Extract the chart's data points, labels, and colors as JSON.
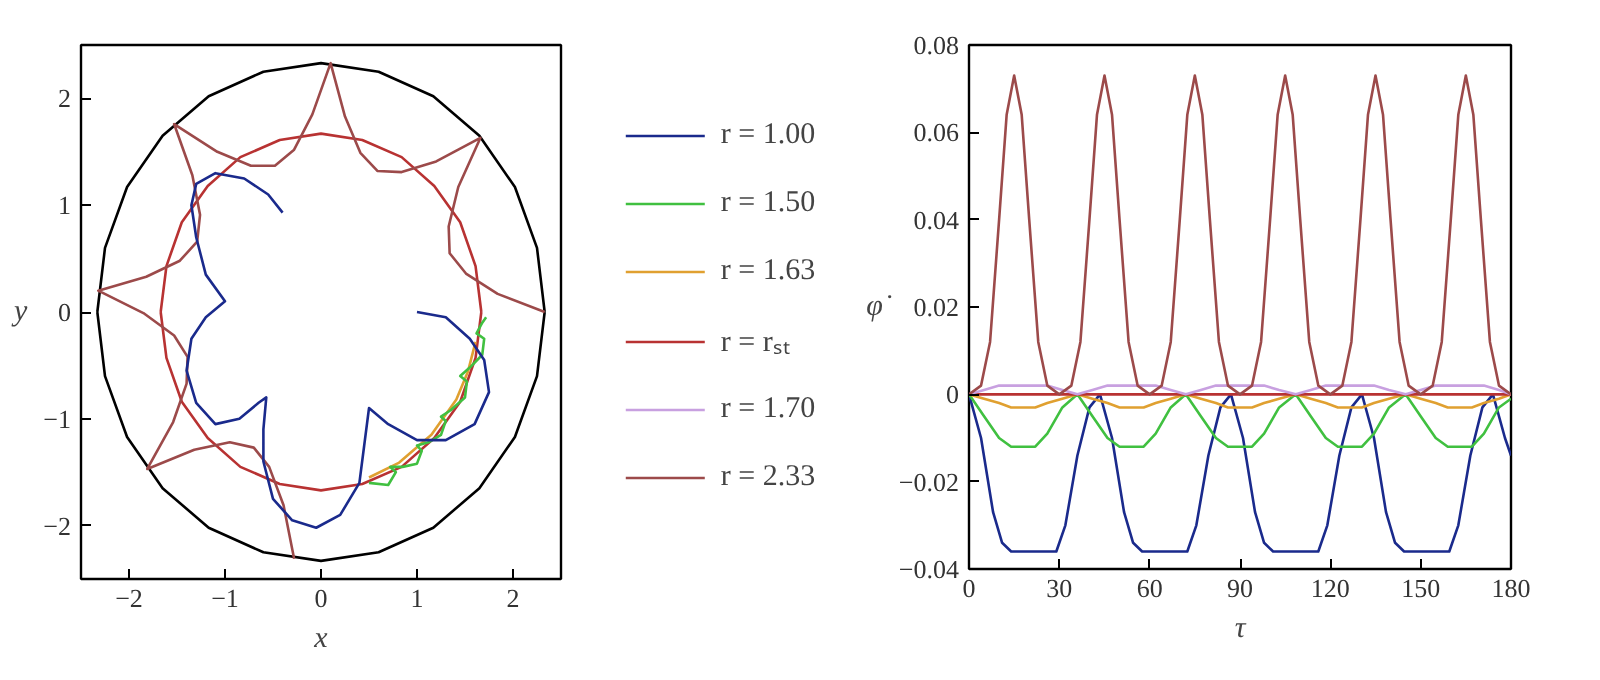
{
  "chart_data": [
    {
      "type": "line",
      "xlabel": "x",
      "ylabel": "y",
      "xlim": [
        -2.5,
        2.5
      ],
      "ylim": [
        -2.5,
        2.5
      ],
      "xticks": [
        {
          "value": -2,
          "label": "−2"
        },
        {
          "value": -1,
          "label": "−1"
        },
        0,
        1,
        2
      ],
      "yticks": [
        {
          "value": -2,
          "label": "−2"
        },
        {
          "value": -1,
          "label": "−1"
        },
        0,
        1,
        2
      ],
      "grid": false,
      "legend": false,
      "line_style": "solid",
      "marker": "none",
      "series": [
        {
          "color": "#000000",
          "x": [
            -2.33,
            -2.25,
            -2.02,
            -1.65,
            -1.17,
            -0.6,
            0,
            0.6,
            1.17,
            1.65,
            2.02,
            2.25,
            2.33,
            null,
            -2.33,
            -2.25,
            -2.02,
            -1.65,
            -1.17,
            -0.6,
            0,
            0.6,
            1.17,
            1.65,
            2.02,
            2.25,
            2.33
          ],
          "values": [
            0,
            0.6,
            1.17,
            1.65,
            2.02,
            2.25,
            2.33,
            2.25,
            2.02,
            1.65,
            1.17,
            0.6,
            0,
            null,
            0,
            -0.6,
            -1.17,
            -1.65,
            -2.02,
            -2.25,
            -2.33,
            -2.25,
            -2.02,
            -1.65,
            -1.17,
            -0.6,
            0
          ]
        },
        {
          "color": "#b83232",
          "x": [
            -1.67,
            -1.61,
            -1.45,
            -1.18,
            -0.84,
            -0.43,
            0,
            0.43,
            0.84,
            1.18,
            1.45,
            1.61,
            1.67,
            null,
            -1.67,
            -1.61,
            -1.45,
            -1.18,
            -0.84,
            -0.43,
            0,
            0.43,
            0.84,
            1.18,
            1.45,
            1.61,
            1.67
          ],
          "values": [
            0,
            0.43,
            0.84,
            1.18,
            1.45,
            1.61,
            1.67,
            1.61,
            1.45,
            1.18,
            0.84,
            0.43,
            0,
            null,
            0,
            -0.43,
            -0.84,
            -1.18,
            -1.45,
            -1.61,
            -1.67,
            -1.61,
            -1.45,
            -1.18,
            -0.84,
            -0.43,
            0
          ]
        },
        {
          "color": "#9c4a4a",
          "x": [
            2.33,
            1.84,
            1.51,
            1.34,
            1.33,
            1.43,
            1.66,
            1.2,
            0.84,
            0.59,
            0.41,
            0.25,
            0.1,
            -0.09,
            -0.28,
            -0.48,
            -0.73,
            -1.08,
            -1.53,
            -1.34,
            -1.26,
            -1.29,
            -1.47,
            -1.82,
            -2.32,
            -1.85,
            -1.53,
            -1.39,
            -1.4,
            -1.54,
            -1.81,
            -1.32,
            -0.95,
            -0.7,
            -0.54,
            -0.39,
            -0.28
          ],
          "values": [
            0,
            0.17,
            0.36,
            0.55,
            0.8,
            1.17,
            1.63,
            1.41,
            1.31,
            1.32,
            1.49,
            1.83,
            2.33,
            1.85,
            1.52,
            1.37,
            1.37,
            1.5,
            1.76,
            1.28,
            0.91,
            0.66,
            0.48,
            0.33,
            0.2,
            -0.01,
            -0.22,
            -0.42,
            -0.67,
            -1.03,
            -1.47,
            -1.29,
            -1.22,
            -1.27,
            -1.45,
            -1.81,
            -2.31
          ]
        },
        {
          "color": "#e0a030",
          "x": [
            0.5,
            0.815,
            1.15,
            1.41,
            1.53,
            1.61
          ],
          "values": [
            -1.55,
            -1.41,
            -1.15,
            -0.82,
            -0.56,
            -0.28
          ]
        },
        {
          "color": "#40c040",
          "x": [
            0.5,
            0.7,
            0.78,
            0.72,
            0.85,
            1.0,
            1.05,
            1.0,
            1.12,
            1.25,
            1.3,
            1.25,
            1.35,
            1.5,
            1.52,
            1.45,
            1.55,
            1.68,
            1.7,
            1.62,
            1.68,
            1.72
          ],
          "values": [
            -1.6,
            -1.62,
            -1.5,
            -1.45,
            -1.45,
            -1.42,
            -1.3,
            -1.25,
            -1.22,
            -1.15,
            -1.02,
            -0.98,
            -0.92,
            -0.8,
            -0.65,
            -0.6,
            -0.52,
            -0.4,
            -0.25,
            -0.2,
            -0.1,
            -0.05
          ]
        },
        {
          "color": "#1a2a8c",
          "x": [
            -0.4,
            -0.55,
            -0.8,
            -1.1,
            -1.3,
            -1.35,
            -1.3,
            -1.2,
            -1.0,
            -1.2,
            -1.35,
            -1.4,
            -1.3,
            -1.1,
            -0.85,
            -0.65,
            -0.57,
            -0.6,
            -0.6,
            -0.5,
            -0.3,
            -0.05,
            0.2,
            0.4,
            0.45,
            0.5,
            0.7,
            1.0,
            1.3,
            1.6,
            1.75,
            1.7,
            1.55,
            1.3,
            1.0
          ],
          "values": [
            0.93,
            1.1,
            1.25,
            1.3,
            1.2,
            1.0,
            0.7,
            0.35,
            0.1,
            -0.05,
            -0.25,
            -0.55,
            -0.85,
            -1.05,
            -1.0,
            -0.85,
            -0.8,
            -1.1,
            -1.4,
            -1.75,
            -1.95,
            -2.02,
            -1.9,
            -1.6,
            -1.25,
            -0.9,
            -1.05,
            -1.2,
            -1.2,
            -1.05,
            -0.75,
            -0.45,
            -0.25,
            -0.05,
            0.0
          ]
        }
      ]
    },
    {
      "type": "line",
      "xlabel": "τ",
      "ylabel": "φ̇",
      "xlim": [
        0,
        180
      ],
      "ylim": [
        -0.04,
        0.08
      ],
      "xticks": [
        0,
        30,
        60,
        90,
        120,
        150,
        180
      ],
      "yticks": [
        {
          "value": -0.04,
          "label": "−0.04"
        },
        {
          "value": -0.02,
          "label": "−0.02"
        },
        0,
        0.02,
        0.04,
        0.06,
        0.08
      ],
      "grid": false,
      "legend": "left",
      "line_style": "solid",
      "marker": "none",
      "series": [
        {
          "name": "r = 1.00",
          "color": "#1a2a8c",
          "x": [
            0,
            4,
            8,
            11,
            14,
            29,
            32,
            36,
            40,
            43.5,
            47.5,
            51.5,
            54.5,
            57.5,
            72.5,
            75.5,
            79.5,
            83.5,
            87,
            91,
            95,
            98,
            101,
            116,
            119,
            123,
            127,
            130.5,
            134.5,
            138.5,
            141.5,
            144.5,
            159.5,
            162.5,
            166.5,
            170.5,
            174,
            178,
            180
          ],
          "values": [
            0,
            -0.01,
            -0.027,
            -0.034,
            -0.036,
            -0.036,
            -0.03,
            -0.014,
            -0.003,
            0,
            -0.01,
            -0.027,
            -0.034,
            -0.036,
            -0.036,
            -0.03,
            -0.014,
            -0.003,
            0,
            -0.01,
            -0.027,
            -0.034,
            -0.036,
            -0.036,
            -0.03,
            -0.014,
            -0.003,
            0,
            -0.01,
            -0.027,
            -0.034,
            -0.036,
            -0.036,
            -0.03,
            -0.014,
            -0.003,
            0,
            -0.01,
            -0.014
          ]
        },
        {
          "name": "r = 1.50",
          "color": "#40c040",
          "x": [
            0,
            5,
            10,
            14,
            18,
            22,
            26,
            31,
            36,
            41,
            46,
            50,
            54,
            58,
            62,
            67,
            72,
            77,
            82,
            86,
            90,
            94,
            98,
            103,
            108.5,
            113.5,
            118.5,
            122.5,
            126.5,
            130.5,
            134.5,
            139.5,
            145,
            150,
            155,
            159,
            163,
            167,
            171,
            176,
            180
          ],
          "values": [
            0,
            -0.005,
            -0.01,
            -0.012,
            -0.012,
            -0.012,
            -0.009,
            -0.003,
            0,
            -0.005,
            -0.01,
            -0.012,
            -0.012,
            -0.012,
            -0.009,
            -0.003,
            0,
            -0.005,
            -0.01,
            -0.012,
            -0.012,
            -0.012,
            -0.009,
            -0.003,
            0,
            -0.005,
            -0.01,
            -0.012,
            -0.012,
            -0.012,
            -0.009,
            -0.003,
            0,
            -0.005,
            -0.01,
            -0.012,
            -0.012,
            -0.012,
            -0.009,
            -0.003,
            -0.001
          ]
        },
        {
          "name": "r = 1.63",
          "color": "#e0a030",
          "x": [
            0,
            5,
            10,
            14,
            18,
            22,
            26,
            31,
            36,
            41,
            46,
            50,
            54,
            58,
            62,
            67,
            72,
            77,
            82,
            86,
            90,
            94,
            98,
            103,
            108.5,
            113.5,
            118.5,
            122.5,
            126.5,
            130.5,
            134.5,
            139.5,
            145,
            150,
            155,
            159,
            163,
            167,
            171,
            176,
            180
          ],
          "values": [
            0,
            -0.001,
            -0.002,
            -0.003,
            -0.003,
            -0.003,
            -0.002,
            -0.001,
            0,
            -0.001,
            -0.002,
            -0.003,
            -0.003,
            -0.003,
            -0.002,
            -0.001,
            0,
            -0.001,
            -0.002,
            -0.003,
            -0.003,
            -0.003,
            -0.002,
            -0.001,
            0,
            -0.001,
            -0.002,
            -0.003,
            -0.003,
            -0.003,
            -0.002,
            -0.001,
            0,
            -0.001,
            -0.002,
            -0.003,
            -0.003,
            -0.003,
            -0.002,
            -0.001,
            0
          ]
        },
        {
          "name": "r = rₛₜ",
          "color": "#b83232",
          "x": [
            0,
            180
          ],
          "values": [
            0,
            0
          ]
        },
        {
          "name": "r = 1.70",
          "color": "#c8a0e0",
          "x": [
            0,
            5,
            10,
            14,
            18,
            22,
            26,
            31,
            36,
            41,
            46,
            50,
            54,
            58,
            62,
            67,
            72,
            77,
            82,
            86,
            90,
            94,
            98,
            103,
            108.5,
            113.5,
            118.5,
            122.5,
            126.5,
            130.5,
            134.5,
            139.5,
            145,
            150,
            155,
            159,
            163,
            167,
            171,
            176,
            180
          ],
          "values": [
            0,
            0.001,
            0.002,
            0.002,
            0.002,
            0.002,
            0.002,
            0.001,
            0,
            0.001,
            0.002,
            0.002,
            0.002,
            0.002,
            0.002,
            0.001,
            0,
            0.001,
            0.002,
            0.002,
            0.002,
            0.002,
            0.002,
            0.001,
            0,
            0.001,
            0.002,
            0.002,
            0.002,
            0.002,
            0.002,
            0.001,
            0,
            0.001,
            0.002,
            0.002,
            0.002,
            0.002,
            0.002,
            0.001,
            0
          ]
        },
        {
          "name": "r = 2.33",
          "color": "#9c4a4a",
          "x": [
            0,
            4,
            7,
            10,
            12.5,
            15,
            17.5,
            20,
            23,
            26,
            30,
            34,
            37,
            40,
            42.5,
            45,
            47.5,
            50,
            53,
            56,
            60,
            64,
            67,
            70,
            72.5,
            75,
            77.5,
            80,
            83,
            86,
            90,
            94,
            97,
            100,
            102.5,
            105,
            107.5,
            110,
            113,
            116,
            120,
            124,
            127,
            130,
            132.5,
            135,
            137.5,
            140,
            143,
            146,
            150,
            154,
            157,
            160,
            162.5,
            165,
            167.5,
            170,
            173,
            176,
            180
          ],
          "values": [
            0,
            0.002,
            0.012,
            0.04,
            0.064,
            0.073,
            0.064,
            0.04,
            0.012,
            0.002,
            0,
            0.002,
            0.012,
            0.04,
            0.064,
            0.073,
            0.064,
            0.04,
            0.012,
            0.002,
            0,
            0.002,
            0.012,
            0.04,
            0.064,
            0.073,
            0.064,
            0.04,
            0.012,
            0.002,
            0,
            0.002,
            0.012,
            0.04,
            0.064,
            0.073,
            0.064,
            0.04,
            0.012,
            0.002,
            0,
            0.002,
            0.012,
            0.04,
            0.064,
            0.073,
            0.064,
            0.04,
            0.012,
            0.002,
            0,
            0.002,
            0.012,
            0.04,
            0.064,
            0.073,
            0.064,
            0.04,
            0.012,
            0.002,
            0
          ]
        }
      ]
    }
  ]
}
